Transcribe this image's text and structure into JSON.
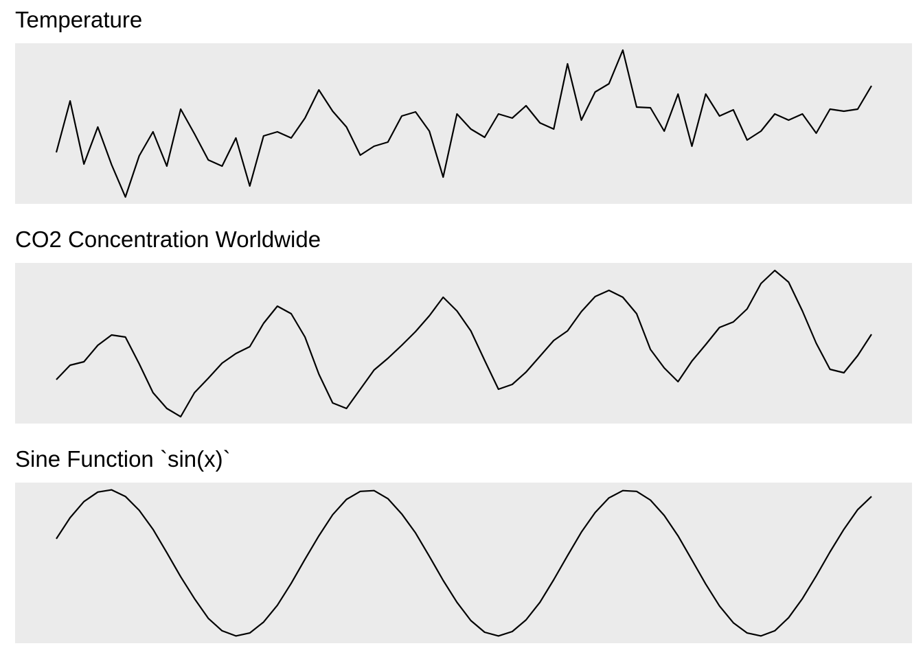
{
  "chart_data": [
    {
      "type": "line",
      "title": "Temperature",
      "color": "#000000",
      "ylim": [
        0,
        234
      ],
      "values": [
        75,
        150,
        58,
        112,
        57,
        10,
        70,
        105,
        55,
        138,
        102,
        64,
        55,
        96,
        26,
        99,
        105,
        96,
        125,
        166,
        135,
        112,
        71,
        84,
        90,
        128,
        134,
        106,
        39,
        131,
        109,
        97,
        131,
        125,
        143,
        118,
        109,
        204,
        122,
        163,
        175,
        224,
        141,
        140,
        106,
        160,
        84,
        160,
        128,
        137,
        93,
        106,
        131,
        122,
        131,
        103,
        138,
        135,
        138,
        172
      ]
    },
    {
      "type": "line",
      "title": "CO2 Concentration Worldwide",
      "color": "#000000",
      "ylim": [
        0,
        234
      ],
      "values": [
        64,
        85,
        90,
        114,
        129,
        126,
        87,
        45,
        22,
        10,
        45,
        66,
        88,
        102,
        112,
        146,
        171,
        160,
        126,
        72,
        30,
        22,
        50,
        78,
        95,
        114,
        134,
        157,
        184,
        164,
        135,
        92,
        50,
        57,
        75,
        98,
        121,
        135,
        163,
        185,
        194,
        184,
        160,
        108,
        81,
        61,
        91,
        115,
        140,
        148,
        167,
        204,
        223,
        206,
        164,
        117,
        79,
        74,
        99,
        130
      ]
    },
    {
      "type": "line",
      "title": "Sine Function `sin(x)`",
      "color": "#000000",
      "ylim": [
        -1.1,
        1.1
      ],
      "values": [
        0.33,
        0.62,
        0.84,
        0.97,
        1.0,
        0.91,
        0.72,
        0.46,
        0.14,
        -0.19,
        -0.49,
        -0.76,
        -0.93,
        -1.0,
        -0.96,
        -0.81,
        -0.58,
        -0.28,
        0.05,
        0.37,
        0.66,
        0.87,
        0.98,
        0.99,
        0.88,
        0.67,
        0.41,
        0.09,
        -0.24,
        -0.54,
        -0.79,
        -0.95,
        -1.0,
        -0.94,
        -0.78,
        -0.54,
        -0.23,
        0.1,
        0.42,
        0.69,
        0.89,
        0.99,
        0.98,
        0.86,
        0.65,
        0.37,
        0.04,
        -0.29,
        -0.59,
        -0.82,
        -0.96,
        -1.0,
        -0.93,
        -0.75,
        -0.49,
        -0.18,
        0.15,
        0.46,
        0.73,
        0.91
      ]
    }
  ]
}
